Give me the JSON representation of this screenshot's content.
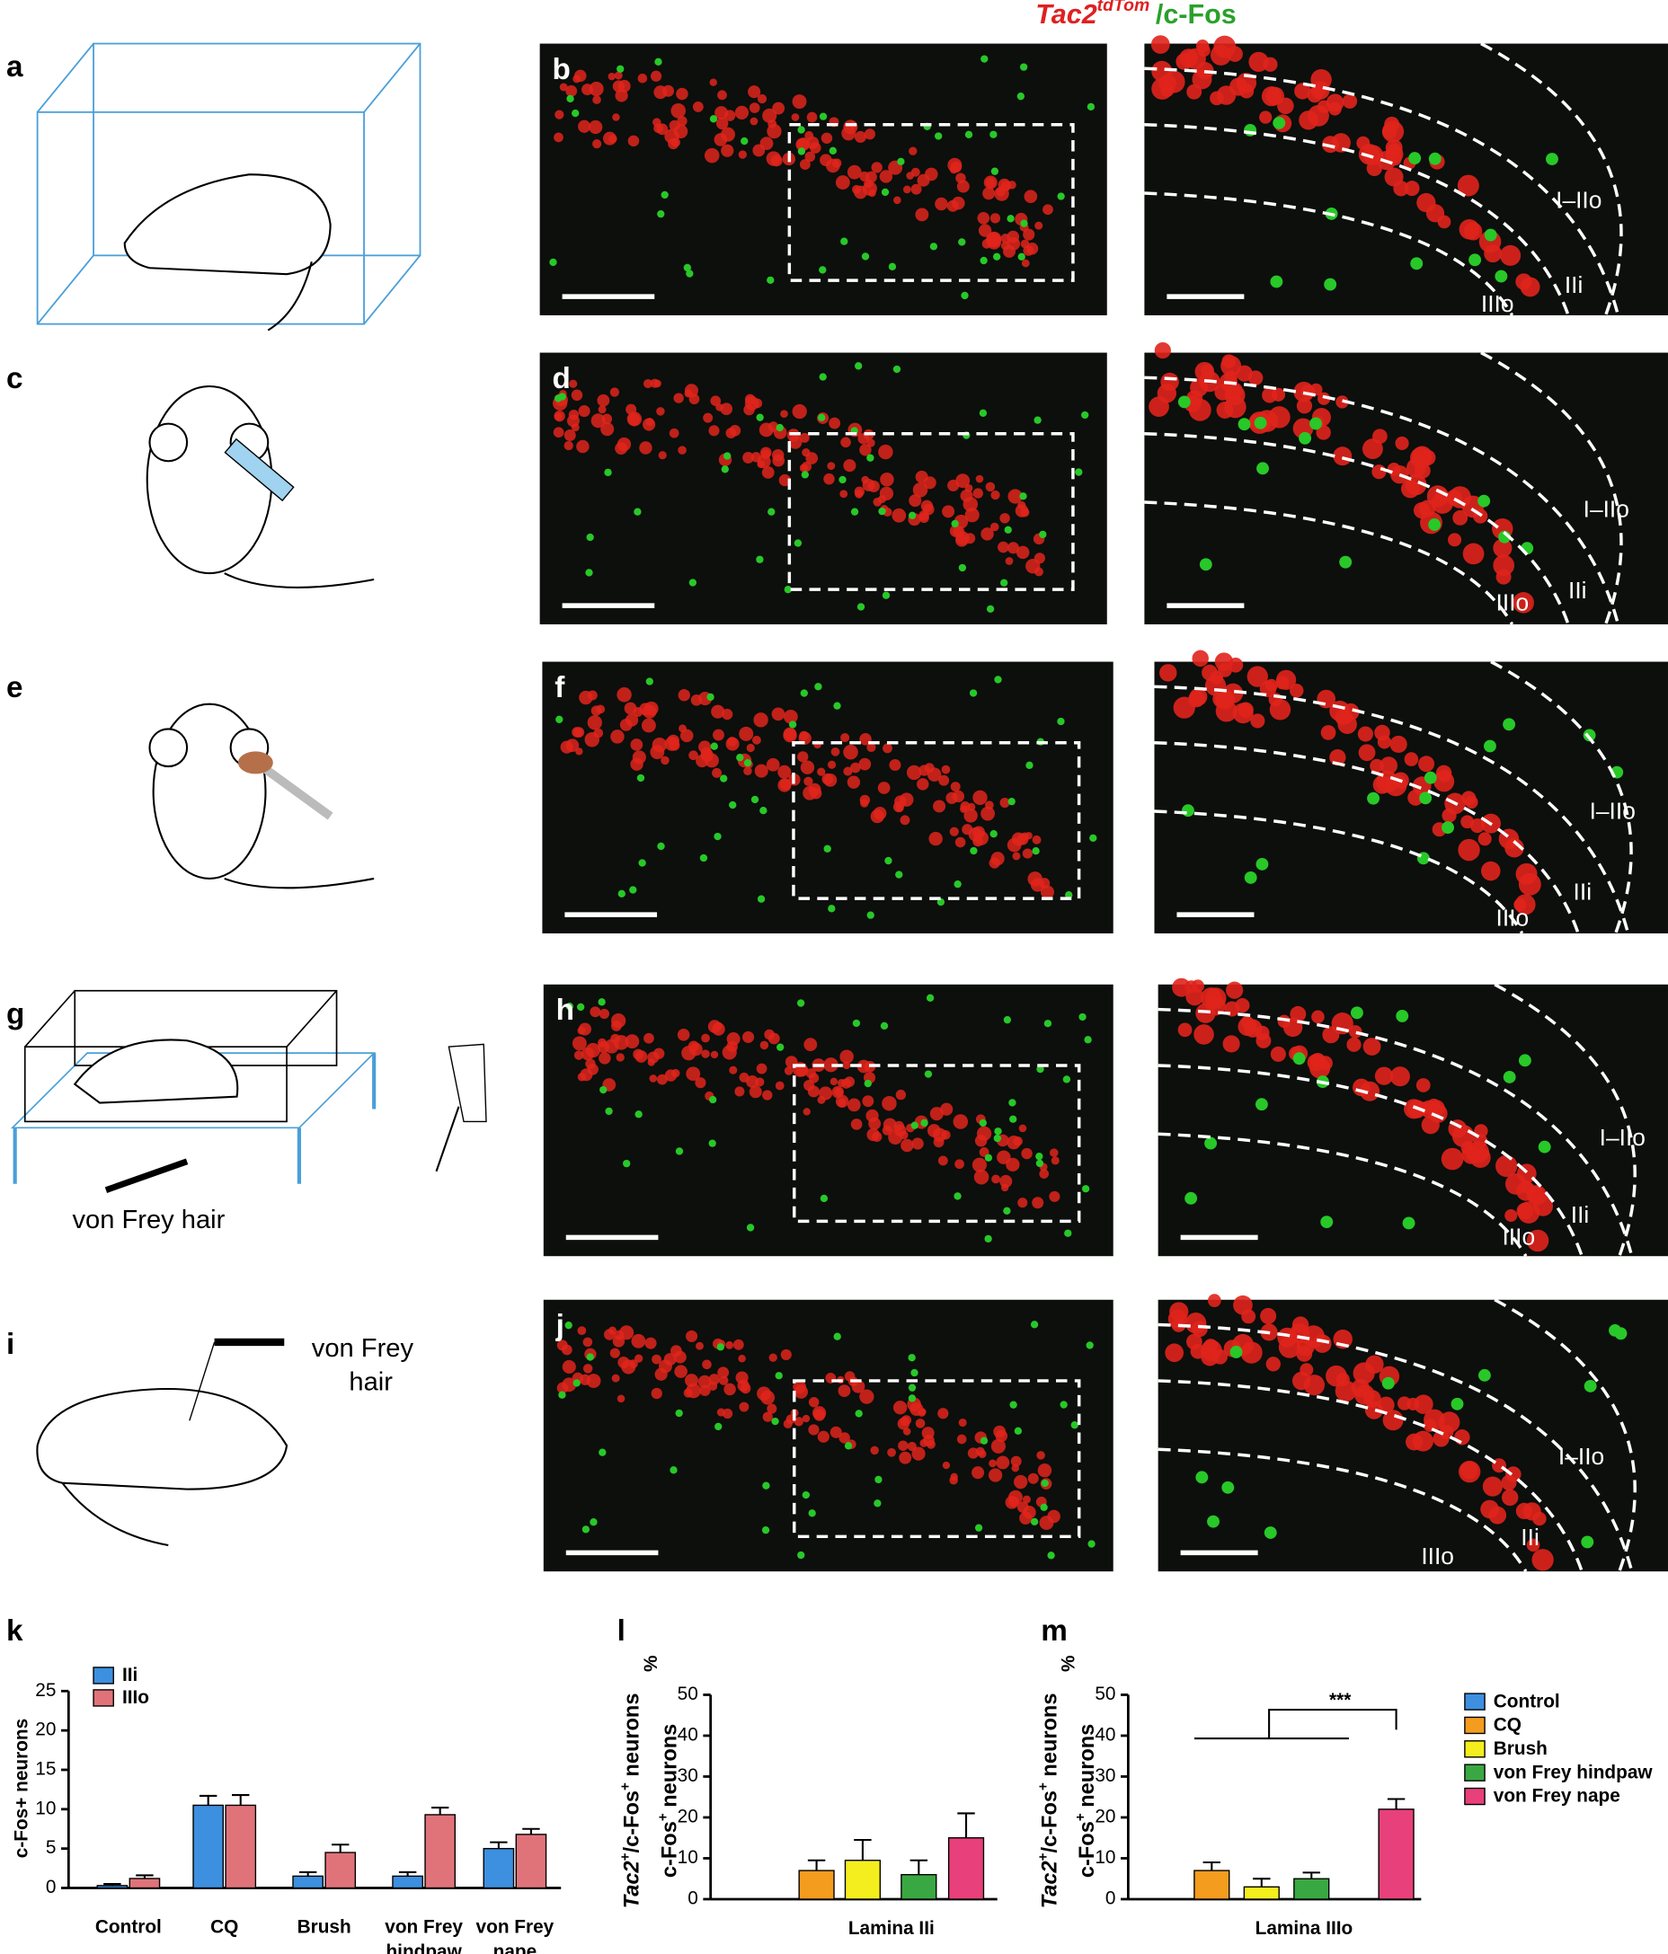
{
  "figure": {
    "title": [
      "Tac2",
      "tdTom",
      "/c-Fos"
    ],
    "left_letters": [
      "a",
      "c",
      "e",
      "g",
      "i"
    ],
    "g_label": "von Frey hair",
    "i_label": [
      "von Frey",
      "hair"
    ],
    "images": [
      {
        "letter": "b",
        "laminae": [
          "I–IIo",
          "IIi",
          "IIIo"
        ]
      },
      {
        "letter": "d",
        "laminae": [
          "I–IIo",
          "IIi",
          "IIIo"
        ]
      },
      {
        "letter": "f",
        "laminae": [
          "I–IIo",
          "IIi",
          "IIIo"
        ]
      },
      {
        "letter": "h",
        "laminae": [
          "I–IIo",
          "IIi",
          "IIIo"
        ]
      },
      {
        "letter": "j",
        "laminae": [
          "I–IIo",
          "IIi",
          "IIIo"
        ]
      }
    ],
    "legend": [
      {
        "name": "Control",
        "color": "#3d8fe0"
      },
      {
        "name": "CQ",
        "color": "#f39c1e"
      },
      {
        "name": "Brush",
        "color": "#f5ee1e"
      },
      {
        "name": "von Frey hindpaw",
        "color": "#3aa842"
      },
      {
        "name": "von Frey nape",
        "color": "#e8407a"
      }
    ]
  },
  "chart_data": [
    {
      "type": "bar",
      "label": "k",
      "ylabel": "c-Fos+ neurons",
      "categories": [
        [
          "Control"
        ],
        [
          "CQ"
        ],
        [
          "Brush"
        ],
        [
          "von Frey",
          "hindpaw"
        ],
        [
          "von Frey",
          "nape"
        ]
      ],
      "series": [
        {
          "name": "IIi",
          "color": "#3d8fe0",
          "values": [
            0.3,
            10.5,
            1.5,
            1.5,
            5
          ],
          "errors": [
            0.2,
            1.2,
            0.5,
            0.5,
            0.8
          ]
        },
        {
          "name": "IIIo",
          "color": "#e0737a",
          "values": [
            1.2,
            10.5,
            4.5,
            9.3,
            6.8
          ],
          "errors": [
            0.4,
            1.3,
            1.0,
            0.9,
            0.7
          ]
        }
      ],
      "ylim": [
        0,
        25
      ],
      "yticks": [
        0,
        5,
        10,
        15,
        20,
        25
      ]
    },
    {
      "type": "bar",
      "label": "l",
      "xlabel": "Lamina IIi",
      "ylabel": [
        [
          "Tac2",
          "+",
          "/c-Fos",
          "+",
          " neurons"
        ],
        [
          "c-Fos",
          "+",
          " neurons"
        ]
      ],
      "yunit": "%",
      "values": [
        7,
        9.5,
        6,
        15
      ],
      "errors": [
        2.5,
        5,
        3.5,
        6
      ],
      "colors": [
        "#f39c1e",
        "#f5ee1e",
        "#3aa842",
        "#e8407a"
      ],
      "ylim": [
        0,
        50
      ],
      "yticks": [
        0,
        10,
        20,
        30,
        40,
        50
      ]
    },
    {
      "type": "bar",
      "label": "m",
      "xlabel": "Lamina IIIo",
      "ylabel": [
        [
          "Tac2",
          "+",
          "/c-Fos",
          "+",
          " neurons"
        ],
        [
          "c-Fos",
          "+",
          " neurons"
        ]
      ],
      "yunit": "%",
      "values": [
        7,
        3,
        5,
        22
      ],
      "errors": [
        2,
        2,
        1.5,
        2.5
      ],
      "colors": [
        "#f39c1e",
        "#f5ee1e",
        "#3aa842",
        "#e8407a"
      ],
      "ylim": [
        0,
        50
      ],
      "yticks": [
        0,
        10,
        20,
        30,
        40,
        50
      ],
      "annotation": "***"
    }
  ]
}
